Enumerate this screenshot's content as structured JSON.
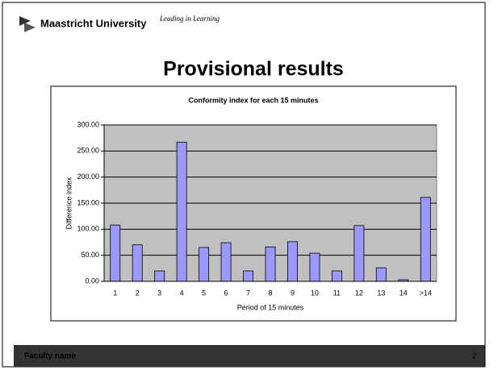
{
  "header": {
    "organization": "Maastricht University",
    "slogan": "Leading in Learning"
  },
  "slide_title": "Provisional results",
  "footer": {
    "text": "Faculty name",
    "page": "2"
  },
  "chart_data": {
    "type": "bar",
    "title": "Conformity index for each 15 minutes",
    "x_label": "Period of 15 minutes",
    "y_label": "Difference index",
    "categories": [
      "1",
      "2",
      "3",
      "4",
      "5",
      "6",
      "7",
      "8",
      "9",
      "10",
      "11",
      "12",
      "13",
      "14",
      ">14"
    ],
    "values": [
      108,
      70,
      20,
      267,
      65,
      74,
      20,
      66,
      76,
      54,
      20,
      107,
      26,
      3,
      161
    ],
    "color": "#9999ff",
    "ylim": [
      0,
      300
    ],
    "yticks": [
      {
        "value": 0,
        "label": "0.00"
      },
      {
        "value": 50,
        "label": "50.00"
      },
      {
        "value": 100,
        "label": "100.00"
      },
      {
        "value": 150,
        "label": "150.00"
      },
      {
        "value": 200,
        "label": "200.00"
      },
      {
        "value": 250,
        "label": "250.00"
      },
      {
        "value": 300,
        "label": "300.00"
      }
    ],
    "grid": true,
    "plot_background": "#c0c0c0"
  }
}
